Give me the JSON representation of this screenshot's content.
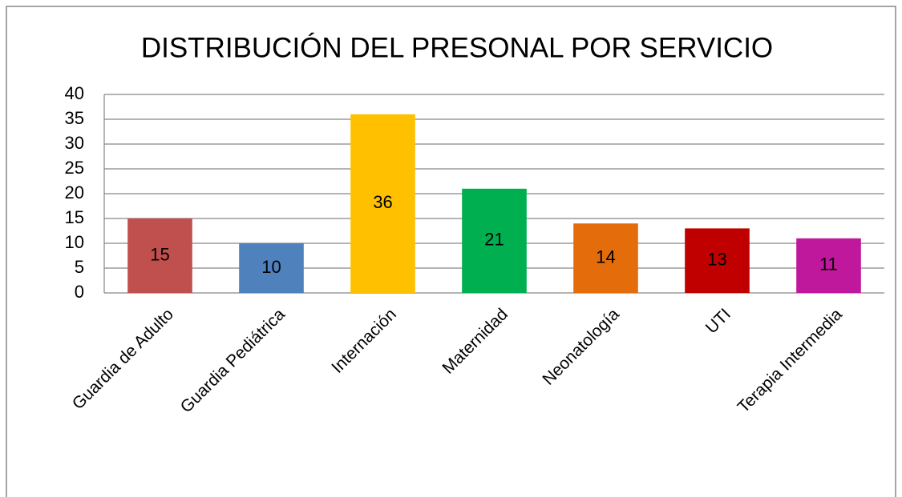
{
  "chart_data": {
    "type": "bar",
    "title": "DISTRIBUCIÓN DEL PRESONAL POR SERVICIO",
    "categories": [
      "Guardia de Adulto",
      "Guardia Pediátrica",
      "Internación",
      "Maternidad",
      "Neonatología",
      "UTI",
      "Terapia Intermedia"
    ],
    "values": [
      15,
      10,
      36,
      21,
      14,
      13,
      11
    ],
    "colors": [
      "#c0504d",
      "#4f81bd",
      "#ffc000",
      "#00b050",
      "#e46c0a",
      "#c00000",
      "#c0189c"
    ],
    "ylim": [
      0,
      40
    ],
    "yticks": [
      0,
      5,
      10,
      15,
      20,
      25,
      30,
      35,
      40
    ],
    "grid": true
  }
}
